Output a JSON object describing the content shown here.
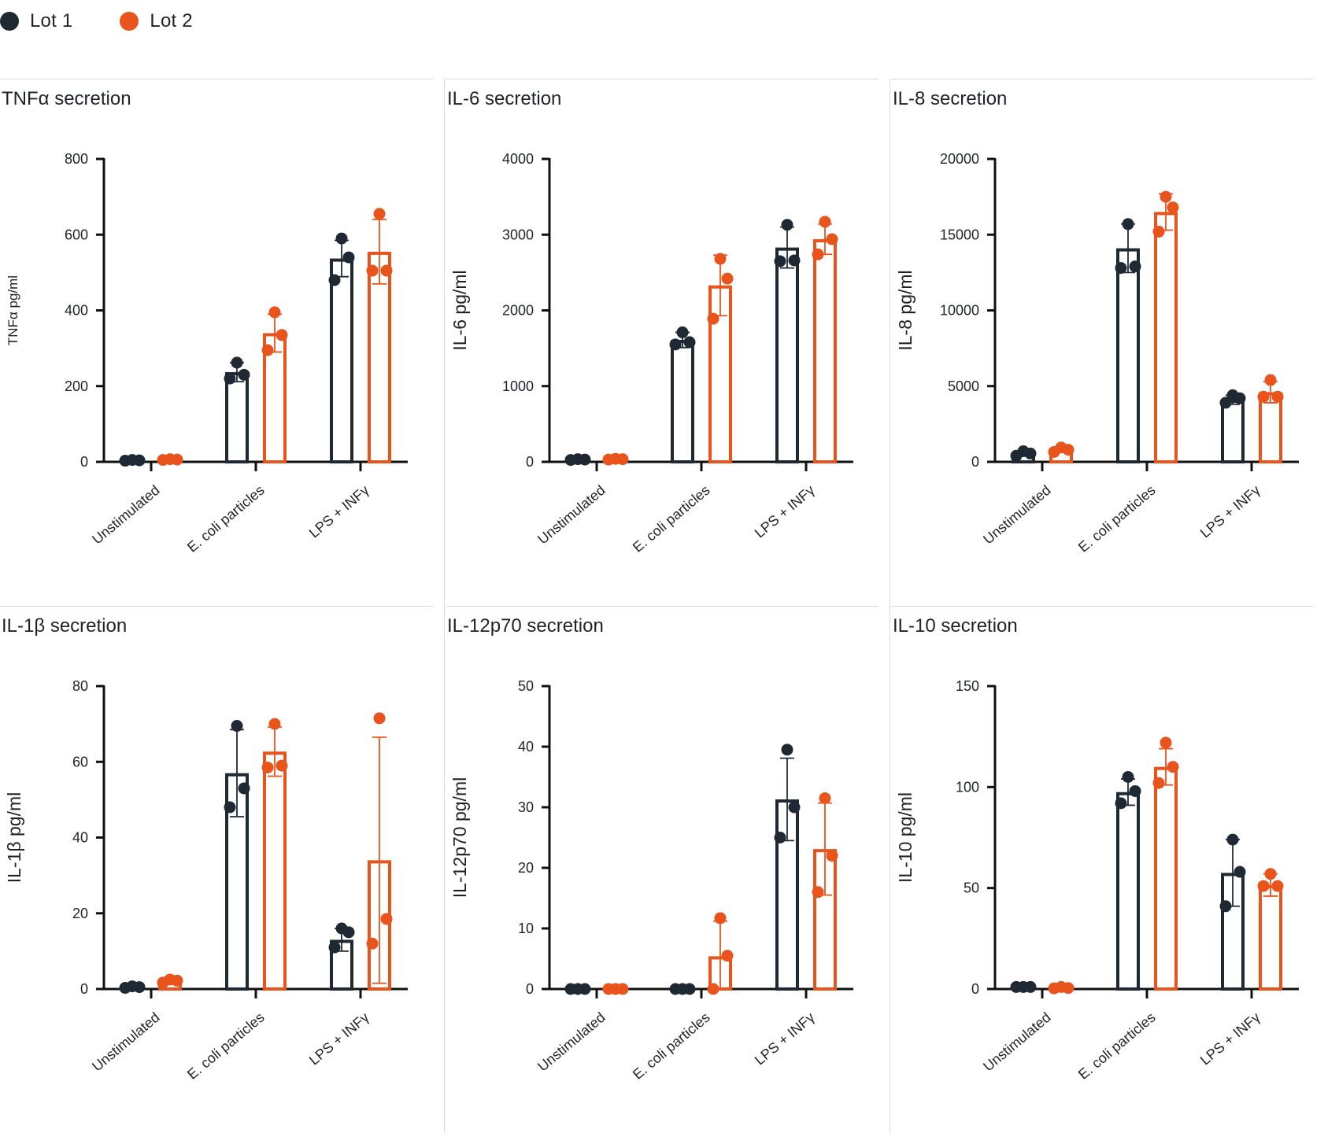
{
  "legend": [
    {
      "label": "Lot 1",
      "color": "#1f2933"
    },
    {
      "label": "Lot 2",
      "color": "#e8541b"
    }
  ],
  "chart_data": [
    {
      "type": "bar",
      "title": "TNFα secretion",
      "ylabel": "TNFα pg/ml",
      "ylim": [
        0,
        800
      ],
      "yticks": [
        0,
        200,
        400,
        600,
        800
      ],
      "categories": [
        "Unstimulated",
        "E. coli particles",
        "LPS + INFγ"
      ],
      "series": [
        {
          "name": "Lot 1",
          "values": [
            4,
            237,
            537
          ],
          "errors": [
            1,
            25,
            48
          ],
          "points": [
            [
              3,
              4,
              5
            ],
            [
              220,
              230,
              262
            ],
            [
              480,
              540,
              590
            ]
          ]
        },
        {
          "name": "Lot 2",
          "values": [
            6,
            340,
            555
          ],
          "errors": [
            2,
            50,
            85
          ],
          "points": [
            [
              5,
              6,
              7
            ],
            [
              295,
              335,
              395
            ],
            [
              505,
              505,
              655
            ]
          ]
        }
      ]
    },
    {
      "type": "bar",
      "title": "IL-6 secretion",
      "ylabel": "IL-6 pg/ml",
      "ylim": [
        0,
        4000
      ],
      "yticks": [
        0,
        1000,
        2000,
        3000,
        4000
      ],
      "categories": [
        "Unstimulated",
        "E. coli particles",
        "LPS + INFγ"
      ],
      "series": [
        {
          "name": "Lot 1",
          "values": [
            30,
            1610,
            2830
          ],
          "errors": [
            5,
            100,
            270
          ],
          "points": [
            [
              25,
              30,
              35
            ],
            [
              1550,
              1580,
              1710
            ],
            [
              2650,
              2660,
              3130
            ]
          ]
        },
        {
          "name": "Lot 2",
          "values": [
            35,
            2330,
            2940
          ],
          "errors": [
            5,
            400,
            200
          ],
          "points": [
            [
              30,
              35,
              40
            ],
            [
              1890,
              2420,
              2680
            ],
            [
              2740,
              2940,
              3170
            ]
          ]
        }
      ]
    },
    {
      "type": "bar",
      "title": "IL-8 secretion",
      "ylabel": "IL-8 pg/ml",
      "ylim": [
        0,
        20000
      ],
      "yticks": [
        0,
        5000,
        10000,
        15000,
        20000
      ],
      "categories": [
        "Unstimulated",
        "E. coli particles",
        "LPS + INFγ"
      ],
      "series": [
        {
          "name": "Lot 1",
          "values": [
            550,
            14100,
            4100
          ],
          "errors": [
            150,
            1600,
            300
          ],
          "points": [
            [
              400,
              550,
              700
            ],
            [
              12800,
              12900,
              15700
            ],
            [
              3900,
              4200,
              4400
            ]
          ]
        },
        {
          "name": "Lot 2",
          "values": [
            800,
            16500,
            4600
          ],
          "errors": [
            150,
            1200,
            700
          ],
          "points": [
            [
              650,
              800,
              950
            ],
            [
              15200,
              16800,
              17500
            ],
            [
              4300,
              4300,
              5400
            ]
          ]
        }
      ]
    },
    {
      "type": "bar",
      "title": "IL-1β secretion",
      "ylabel": "IL-1β pg/ml",
      "ylim": [
        0,
        80
      ],
      "yticks": [
        0,
        20,
        40,
        60,
        80
      ],
      "categories": [
        "Unstimulated",
        "E. coli particles",
        "LPS + INFγ"
      ],
      "series": [
        {
          "name": "Lot 1",
          "values": [
            0.5,
            57,
            13
          ],
          "errors": [
            0.3,
            11.5,
            3
          ],
          "points": [
            [
              0.3,
              0.5,
              0.7
            ],
            [
              48,
              53,
              69.5
            ],
            [
              11,
              15,
              16
            ]
          ]
        },
        {
          "name": "Lot 2",
          "values": [
            2,
            62.7,
            34
          ],
          "errors": [
            0.5,
            6.5,
            32.5
          ],
          "points": [
            [
              1.7,
              2.2,
              2.5
            ],
            [
              58.5,
              59,
              70
            ],
            [
              12,
              18.5,
              71.5
            ]
          ]
        }
      ]
    },
    {
      "type": "bar",
      "title": "IL-12p70 secretion",
      "ylabel": "IL-12p70 pg/ml",
      "ylim": [
        0,
        50
      ],
      "yticks": [
        0,
        10,
        20,
        30,
        40,
        50
      ],
      "categories": [
        "Unstimulated",
        "E. coli particles",
        "LPS + INFγ"
      ],
      "series": [
        {
          "name": "Lot 1",
          "values": [
            0,
            0,
            31.3
          ],
          "errors": [
            0,
            0,
            6.8
          ],
          "points": [
            [
              0,
              0,
              0
            ],
            [
              0,
              0,
              0
            ],
            [
              25,
              30,
              39.5
            ]
          ]
        },
        {
          "name": "Lot 2",
          "values": [
            0,
            5.4,
            23.1
          ],
          "errors": [
            0,
            5.8,
            7.6
          ],
          "points": [
            [
              0,
              0,
              0
            ],
            [
              0,
              5.5,
              11.7
            ],
            [
              16,
              22,
              31.5
            ]
          ]
        }
      ]
    },
    {
      "type": "bar",
      "title": "IL-10 secretion",
      "ylabel": "IL-10 pg/ml",
      "ylim": [
        0,
        150
      ],
      "yticks": [
        0,
        50,
        100,
        150
      ],
      "categories": [
        "Unstimulated",
        "E. coli particles",
        "LPS + INFγ"
      ],
      "series": [
        {
          "name": "Lot 1",
          "values": [
            1,
            97.5,
            57.5
          ],
          "errors": [
            0,
            6.5,
            16.5
          ],
          "points": [
            [
              1,
              1,
              1
            ],
            [
              92,
              98,
              105
            ],
            [
              41,
              58,
              74
            ]
          ]
        },
        {
          "name": "Lot 2",
          "values": [
            0.5,
            110,
            51.5
          ],
          "errors": [
            0.5,
            9,
            5.5
          ],
          "points": [
            [
              0.3,
              0.5,
              1
            ],
            [
              102,
              110,
              122
            ],
            [
              51,
              51,
              57
            ]
          ]
        }
      ]
    }
  ]
}
